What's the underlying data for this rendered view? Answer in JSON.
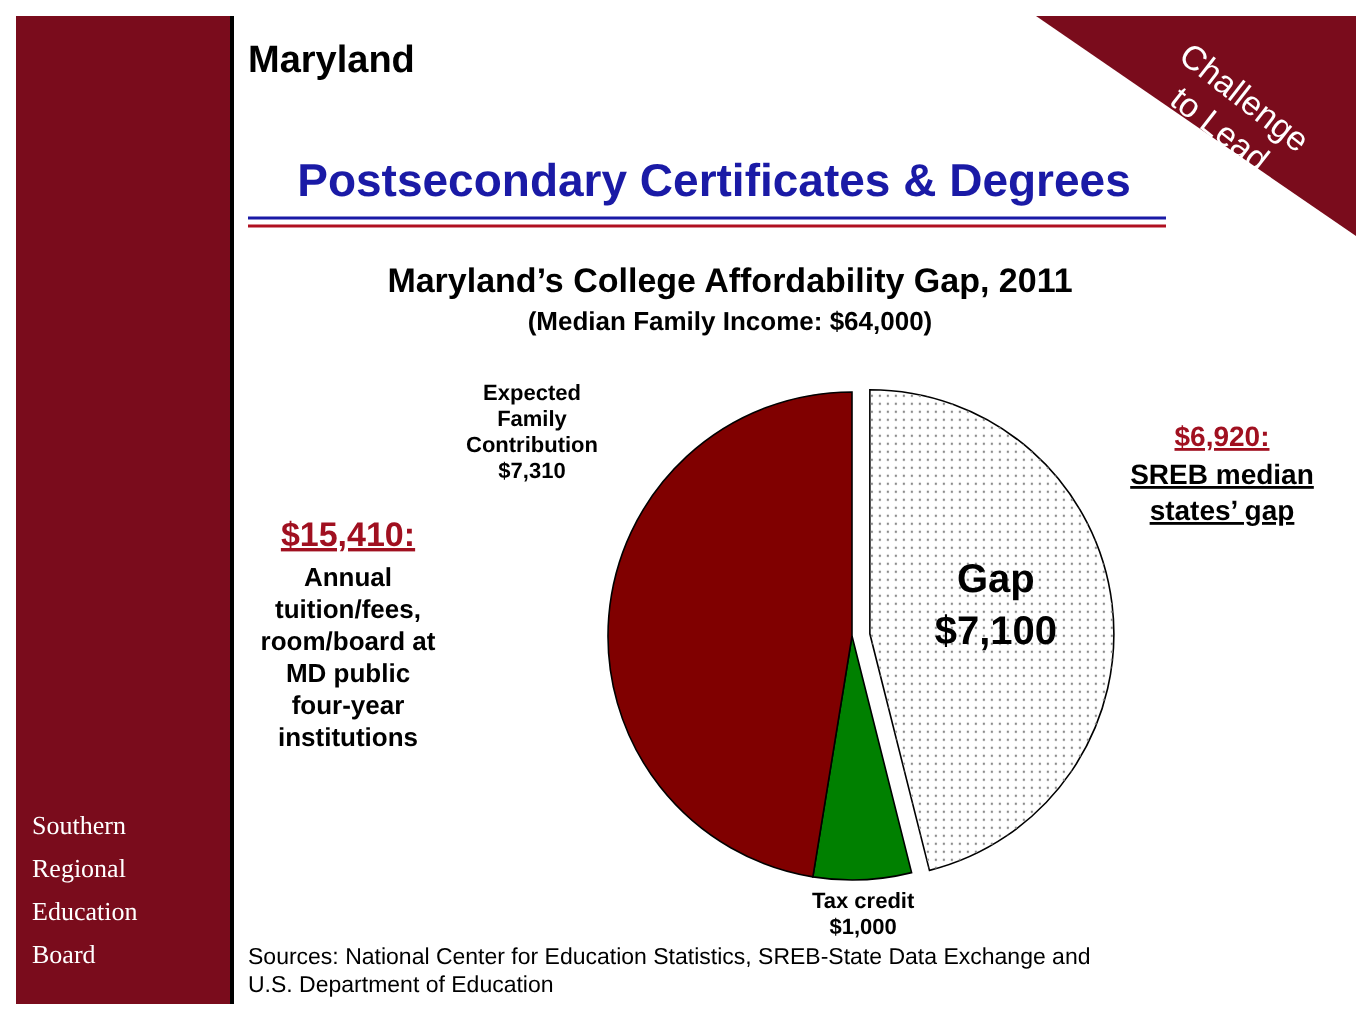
{
  "chart_data": {
    "type": "pie",
    "title": "Maryland’s College Affordability Gap, 2011",
    "subtitle": "(Median Family Income: $64,000)",
    "categories": [
      "Gap",
      "Tax credit",
      "Expected Family Contribution"
    ],
    "values": [
      7100,
      1000,
      7310
    ],
    "value_labels": [
      "$7,100",
      "$1,000",
      "$7,310"
    ],
    "colors": [
      "#ffffff",
      "#008000",
      "#800000"
    ],
    "annotations": [
      "Maryland",
      "Postsecondary Certificates & Degrees",
      "Challenge to Lead",
      "$15,410:",
      "Annual tuition/fees, room/board at MD public four-year institutions",
      "$6,920:",
      "SREB median states’ gap",
      "Southern Regional Education Board",
      "Sources: National Center for Education Statistics, SREB-State Data Exchange and U.S. Department of Education"
    ]
  }
}
